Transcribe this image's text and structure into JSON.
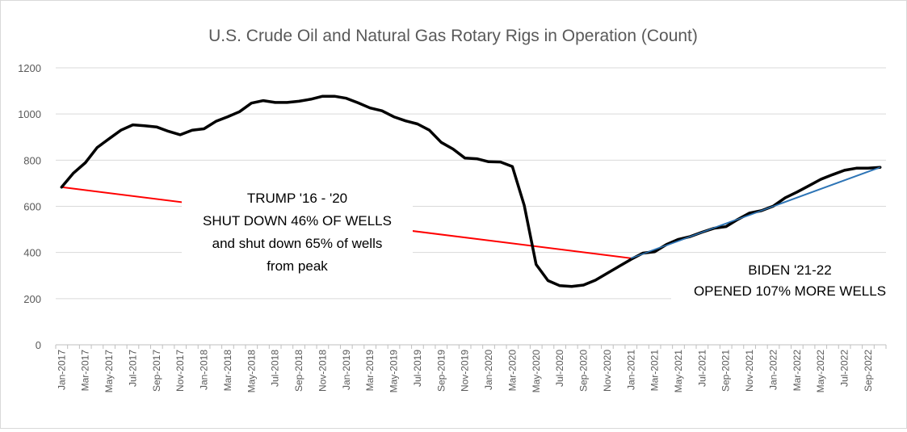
{
  "chart_data": {
    "type": "line",
    "title": "U.S. Crude Oil and Natural Gas Rotary Rigs in Operation (Count)",
    "xlabel": "",
    "ylabel": "",
    "ylim": [
      0,
      1200
    ],
    "yticks": [
      "0",
      "200",
      "400",
      "600",
      "800",
      "1000",
      "1200"
    ],
    "grid": true,
    "x_tick_labels": [
      "Jan-2017",
      "Mar-2017",
      "May-2017",
      "Jul-2017",
      "Sep-2017",
      "Nov-2017",
      "Jan-2018",
      "Mar-2018",
      "May-2018",
      "Jul-2018",
      "Sep-2018",
      "Nov-2018",
      "Jan-2019",
      "Mar-2019",
      "May-2019",
      "Jul-2019",
      "Sep-2019",
      "Nov-2019",
      "Jan-2020",
      "Mar-2020",
      "May-2020",
      "Jul-2020",
      "Sep-2020",
      "Nov-2020",
      "Jan-2021",
      "Mar-2021",
      "May-2021",
      "Jul-2021",
      "Sep-2021",
      "Nov-2021",
      "Jan-2022",
      "Mar-2022",
      "May-2022",
      "Jul-2022",
      "Sep-2022"
    ],
    "series": [
      {
        "name": "Rigs in operation",
        "color": "#000000",
        "values": [
          683,
          744,
          789,
          855,
          893,
          930,
          953,
          949,
          944,
          925,
          910,
          930,
          936,
          968,
          988,
          1010,
          1047,
          1058,
          1050,
          1050,
          1055,
          1064,
          1077,
          1077,
          1068,
          1048,
          1026,
          1014,
          988,
          970,
          957,
          930,
          877,
          848,
          809,
          806,
          793,
          792,
          772,
          604,
          348,
          278,
          256,
          253,
          259,
          280,
          310,
          340,
          370,
          397,
          403,
          435,
          457,
          469,
          488,
          505,
          512,
          543,
          571,
          581,
          601,
          637,
          662,
          689,
          717,
          737,
          756,
          765,
          765,
          769
        ]
      }
    ],
    "trend_lines": [
      {
        "name": "Trump trend",
        "color": "#ff0000",
        "from": {
          "index": 0,
          "value": 683
        },
        "to": {
          "index": 48,
          "value": 375
        }
      },
      {
        "name": "Biden trend",
        "color": "#2e75b6",
        "from": {
          "index": 48,
          "value": 375
        },
        "to": {
          "index": 69,
          "value": 769
        }
      }
    ],
    "annotations": [
      {
        "lines": [
          "TRUMP '16 - '20",
          "SHUT DOWN 46% OF WELLS",
          "and shut down 65% of wells",
          "from peak"
        ]
      },
      {
        "lines": [
          "BIDEN '21-22",
          "OPENED 107% MORE WELLS"
        ]
      }
    ]
  }
}
